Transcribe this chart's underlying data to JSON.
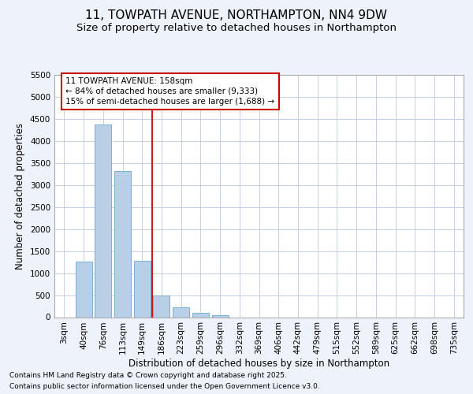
{
  "title_line1": "11, TOWPATH AVENUE, NORTHAMPTON, NN4 9DW",
  "title_line2": "Size of property relative to detached houses in Northampton",
  "xlabel": "Distribution of detached houses by size in Northampton",
  "ylabel": "Number of detached properties",
  "categories": [
    "3sqm",
    "40sqm",
    "76sqm",
    "113sqm",
    "149sqm",
    "186sqm",
    "223sqm",
    "259sqm",
    "296sqm",
    "332sqm",
    "369sqm",
    "406sqm",
    "442sqm",
    "479sqm",
    "515sqm",
    "552sqm",
    "589sqm",
    "625sqm",
    "662sqm",
    "698sqm",
    "735sqm"
  ],
  "values": [
    0,
    1260,
    4375,
    3310,
    1275,
    500,
    225,
    90,
    40,
    0,
    0,
    0,
    0,
    0,
    0,
    0,
    0,
    0,
    0,
    0,
    0
  ],
  "bar_color": "#b8cfe8",
  "bar_edge_color": "#7aafd4",
  "vline_x": 4.5,
  "vline_color": "#cc0000",
  "annotation_text": "11 TOWPATH AVENUE: 158sqm\n← 84% of detached houses are smaller (9,333)\n15% of semi-detached houses are larger (1,688) →",
  "annotation_box_color": "#cc0000",
  "ylim": [
    0,
    5500
  ],
  "yticks": [
    0,
    500,
    1000,
    1500,
    2000,
    2500,
    3000,
    3500,
    4000,
    4500,
    5000,
    5500
  ],
  "footnote1": "Contains HM Land Registry data © Crown copyright and database right 2025.",
  "footnote2": "Contains public sector information licensed under the Open Government Licence v3.0.",
  "bg_color": "#eef2fb",
  "plot_bg_color": "#ffffff",
  "grid_color": "#c5cfe8",
  "title_fontsize": 11,
  "subtitle_fontsize": 9.5,
  "axis_label_fontsize": 8.5,
  "tick_fontsize": 7.5,
  "annotation_fontsize": 7.5,
  "footnote_fontsize": 6.5
}
